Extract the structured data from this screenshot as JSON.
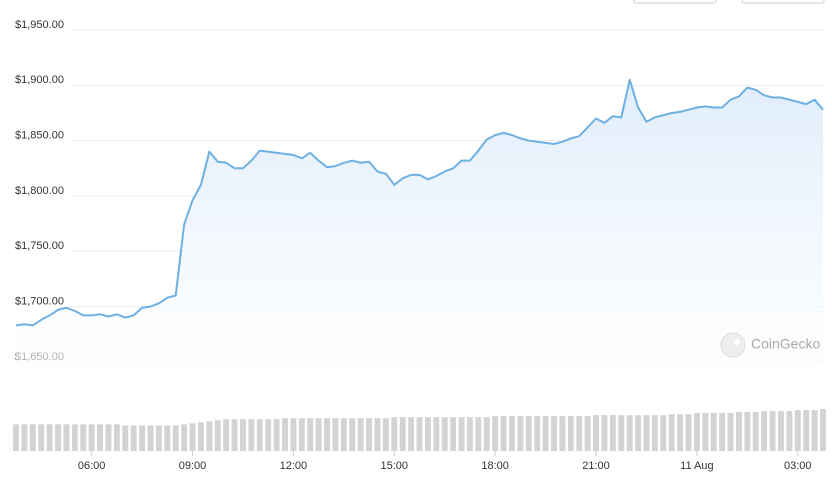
{
  "chart_data": {
    "type": "area",
    "watermark": "CoinGecko",
    "color": "#6fb0e3",
    "volume_color": "#d3d3d3",
    "grid": true,
    "x": [
      3.75,
      4,
      4.25,
      4.5,
      4.75,
      5,
      5.25,
      5.5,
      5.75,
      6,
      6.25,
      6.5,
      6.75,
      7,
      7.25,
      7.5,
      7.75,
      8,
      8.25,
      8.5,
      8.75,
      9,
      9.25,
      9.5,
      9.75,
      10,
      10.25,
      10.5,
      10.75,
      11,
      11.25,
      11.5,
      11.75,
      12,
      12.25,
      12.5,
      12.75,
      13,
      13.25,
      13.5,
      13.75,
      14,
      14.25,
      14.5,
      14.75,
      15,
      15.25,
      15.5,
      15.75,
      16,
      16.25,
      16.5,
      16.75,
      17,
      17.25,
      17.5,
      17.75,
      18,
      18.25,
      18.5,
      18.75,
      19,
      19.25,
      19.5,
      19.75,
      20,
      20.25,
      20.5,
      20.75,
      21,
      21.25,
      21.5,
      21.75,
      22,
      22.25,
      22.5,
      22.75,
      23,
      23.25,
      23.5,
      23.75,
      24,
      24.25,
      24.5,
      24.75,
      25,
      25.25,
      25.5,
      25.75,
      26,
      26.25,
      26.5,
      26.75,
      27,
      27.25,
      27.5,
      27.75
    ],
    "values": [
      1683,
      1684,
      1683,
      1688,
      1692,
      1697,
      1699,
      1696,
      1692,
      1692,
      1693,
      1691,
      1693,
      1690,
      1692,
      1699,
      1700,
      1703,
      1708,
      1710,
      1774,
      1796,
      1810,
      1840,
      1831,
      1830,
      1825,
      1825,
      1832,
      1841,
      1840,
      1839,
      1838,
      1837,
      1834,
      1839,
      1832,
      1826,
      1827,
      1830,
      1832,
      1830,
      1831,
      1822,
      1820,
      1810,
      1816,
      1819,
      1819,
      1815,
      1818,
      1822,
      1825,
      1832,
      1832,
      1841,
      1851,
      1855,
      1857,
      1855,
      1852,
      1850,
      1849,
      1848,
      1847,
      1849,
      1852,
      1854,
      1862,
      1870,
      1866,
      1872,
      1871,
      1905,
      1880,
      1867,
      1871,
      1873,
      1875,
      1876,
      1878,
      1880,
      1881,
      1880,
      1880,
      1887,
      1890,
      1898,
      1896,
      1891,
      1889,
      1889,
      1887,
      1885,
      1883,
      1887,
      1878
    ],
    "volumes": [
      26,
      26,
      26,
      26,
      26,
      26,
      26,
      26,
      26,
      26,
      26,
      26,
      26,
      25,
      25,
      25,
      25,
      25,
      25,
      25,
      26,
      27,
      28,
      29,
      30,
      31,
      31,
      31,
      31,
      31,
      31,
      31,
      32,
      32,
      32,
      32,
      32,
      32,
      32,
      32,
      32,
      32,
      32,
      32,
      32,
      33,
      33,
      33,
      33,
      33,
      33,
      33,
      33,
      33,
      33,
      33,
      33,
      34,
      34,
      34,
      34,
      34,
      34,
      34,
      34,
      34,
      34,
      34,
      34,
      35,
      35,
      35,
      35,
      35,
      35,
      35,
      35,
      35,
      36,
      36,
      36,
      37,
      37,
      37,
      37,
      37,
      38,
      38,
      38,
      39,
      39,
      39,
      39,
      40,
      40,
      40,
      41
    ],
    "xlim": [
      3.75,
      27.75
    ],
    "xticks": [
      {
        "value": 6,
        "label": "06:00"
      },
      {
        "value": 9,
        "label": "09:00"
      },
      {
        "value": 12,
        "label": "12:00"
      },
      {
        "value": 15,
        "label": "15:00"
      },
      {
        "value": 18,
        "label": "18:00"
      },
      {
        "value": 21,
        "label": "21:00"
      },
      {
        "value": 24,
        "label": "11 Aug"
      },
      {
        "value": 27,
        "label": "03:00"
      }
    ],
    "ylim": [
      1630,
      1955
    ],
    "yticks": [
      {
        "value": 1650,
        "label": "$1,650.00"
      },
      {
        "value": 1700,
        "label": "$1,700.00"
      },
      {
        "value": 1750,
        "label": "$1,750.00"
      },
      {
        "value": 1800,
        "label": "$1,800.00"
      },
      {
        "value": 1850,
        "label": "$1,850.00"
      },
      {
        "value": 1900,
        "label": "$1,900.00"
      },
      {
        "value": 1950,
        "label": "$1,950.00"
      }
    ]
  }
}
